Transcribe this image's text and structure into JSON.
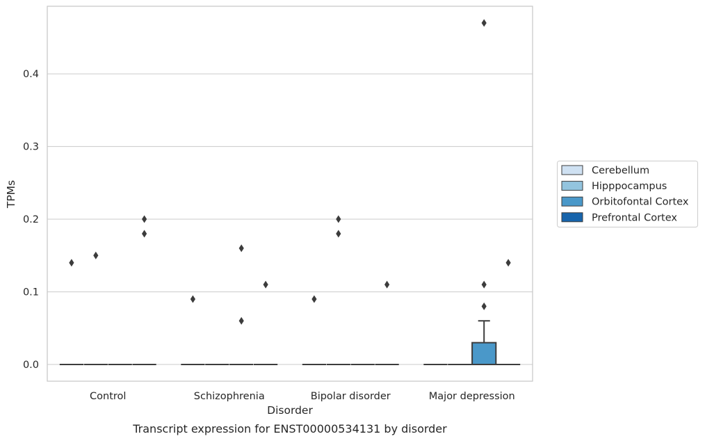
{
  "caption": "Transcript expression for ENST00000534131 by disorder",
  "colors": {
    "Cerebellum": "#cfe1f2",
    "Hipppocampus": "#93c4de",
    "Orbitofontal Cortex": "#4a98c9",
    "Prefrontal Cortex": "#1764ab",
    "outline": "#3c3c3c",
    "grid": "#d0d0d0",
    "frame": "#c8c8c8"
  },
  "chart_data": {
    "type": "box",
    "xlabel": "Disorder",
    "ylabel": "TPMs",
    "ylim": [
      -0.023,
      0.493
    ],
    "yticks": [
      0.0,
      0.1,
      0.2,
      0.3,
      0.4
    ],
    "ytick_labels": [
      "0.0",
      "0.1",
      "0.2",
      "0.3",
      "0.4"
    ],
    "categories": [
      "Control",
      "Schizophrenia",
      "Bipolar disorder",
      "Major depression"
    ],
    "grid": true,
    "legend_position": "right",
    "series": [
      {
        "name": "Cerebellum",
        "boxes": [
          {
            "q1": 0,
            "median": 0,
            "q3": 0,
            "whisker_low": 0,
            "whisker_high": 0,
            "outliers": [
              0.14
            ]
          },
          {
            "q1": 0,
            "median": 0,
            "q3": 0,
            "whisker_low": 0,
            "whisker_high": 0,
            "outliers": [
              0.09
            ]
          },
          {
            "q1": 0,
            "median": 0,
            "q3": 0,
            "whisker_low": 0,
            "whisker_high": 0,
            "outliers": [
              0.09
            ]
          },
          {
            "q1": 0,
            "median": 0,
            "q3": 0,
            "whisker_low": 0,
            "whisker_high": 0,
            "outliers": []
          }
        ]
      },
      {
        "name": "Hipppocampus",
        "boxes": [
          {
            "q1": 0,
            "median": 0,
            "q3": 0,
            "whisker_low": 0,
            "whisker_high": 0,
            "outliers": [
              0.15
            ]
          },
          {
            "q1": 0,
            "median": 0,
            "q3": 0,
            "whisker_low": 0,
            "whisker_high": 0,
            "outliers": []
          },
          {
            "q1": 0,
            "median": 0,
            "q3": 0,
            "whisker_low": 0,
            "whisker_high": 0,
            "outliers": [
              0.2,
              0.18
            ]
          },
          {
            "q1": 0,
            "median": 0,
            "q3": 0,
            "whisker_low": 0,
            "whisker_high": 0,
            "outliers": []
          }
        ]
      },
      {
        "name": "Orbitofontal Cortex",
        "boxes": [
          {
            "q1": 0,
            "median": 0,
            "q3": 0,
            "whisker_low": 0,
            "whisker_high": 0,
            "outliers": []
          },
          {
            "q1": 0,
            "median": 0,
            "q3": 0,
            "whisker_low": 0,
            "whisker_high": 0,
            "outliers": [
              0.16,
              0.06
            ]
          },
          {
            "q1": 0,
            "median": 0,
            "q3": 0,
            "whisker_low": 0,
            "whisker_high": 0,
            "outliers": []
          },
          {
            "q1": 0,
            "median": 0,
            "q3": 0.03,
            "whisker_low": 0,
            "whisker_high": 0.06,
            "outliers": [
              0.47,
              0.11,
              0.08
            ]
          }
        ]
      },
      {
        "name": "Prefrontal Cortex",
        "boxes": [
          {
            "q1": 0,
            "median": 0,
            "q3": 0,
            "whisker_low": 0,
            "whisker_high": 0,
            "outliers": [
              0.2,
              0.18
            ]
          },
          {
            "q1": 0,
            "median": 0,
            "q3": 0,
            "whisker_low": 0,
            "whisker_high": 0,
            "outliers": [
              0.11
            ]
          },
          {
            "q1": 0,
            "median": 0,
            "q3": 0,
            "whisker_low": 0,
            "whisker_high": 0,
            "outliers": [
              0.11
            ]
          },
          {
            "q1": 0,
            "median": 0,
            "q3": 0,
            "whisker_low": 0,
            "whisker_high": 0,
            "outliers": [
              0.14
            ]
          }
        ]
      }
    ]
  }
}
